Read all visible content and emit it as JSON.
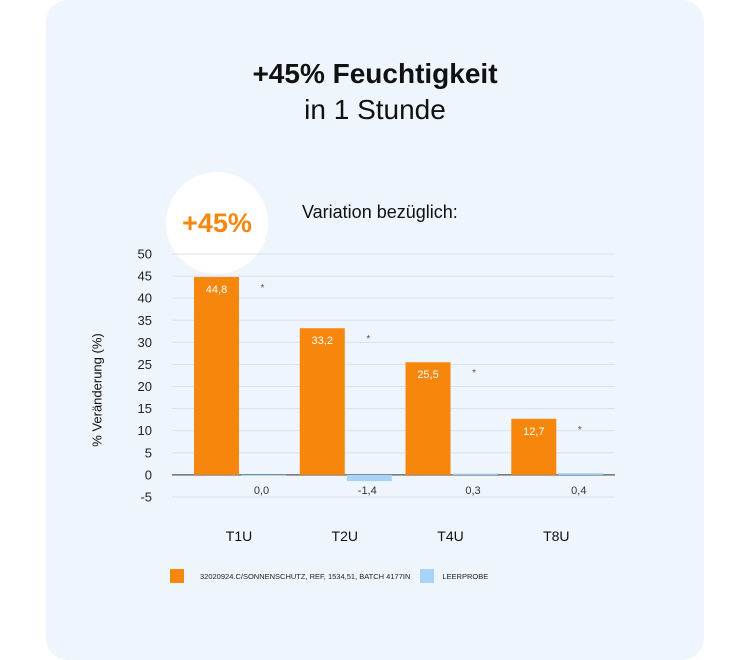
{
  "title_line1": "+45% Feuchtigkeit",
  "title_line2": "in 1 Stunde",
  "badge": "+45%",
  "chart_data": {
    "type": "bar",
    "title": "Variation bezüglich:",
    "xlabel": "",
    "ylabel": "% Veränderung (%)",
    "categories": [
      "T1U",
      "T2U",
      "T4U",
      "T8U"
    ],
    "ylim": [
      -5,
      50
    ],
    "yticks": [
      -5,
      0,
      5,
      10,
      15,
      20,
      25,
      30,
      35,
      40,
      45,
      50
    ],
    "grid": true,
    "legend_position": "bottom",
    "series": [
      {
        "name": "32020924.C/SONNENSCHUTZ, REF, 1534,51, BATCH 4177IN",
        "color": "#f7860d",
        "values": [
          44.8,
          33.2,
          25.5,
          12.7
        ],
        "labels": [
          "44,8",
          "33,2",
          "25,5",
          "12,7"
        ]
      },
      {
        "name": "LEERPROBE",
        "color": "#a6d3f7",
        "values": [
          0.0,
          -1.4,
          0.3,
          0.4
        ],
        "labels": [
          "0,0",
          "-1,4",
          "0,3",
          "0,4"
        ]
      }
    ],
    "annotations": [
      "*",
      "*",
      "*",
      "*"
    ]
  }
}
